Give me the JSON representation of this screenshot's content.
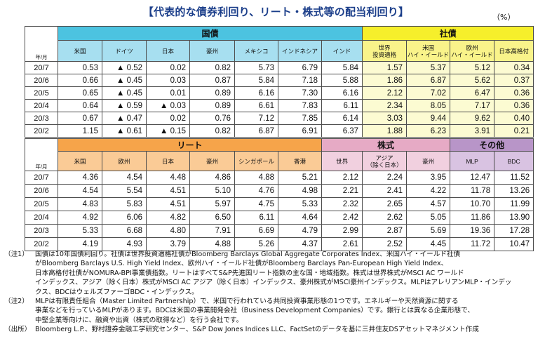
{
  "title": "【代表的な債券利回り、リート・株式等の配当利回り】",
  "unit": "（%）",
  "year_month_label": "年/月",
  "top_table": {
    "groups": {
      "bonds": "国債",
      "corp": "社債"
    },
    "headers": [
      "米国",
      "ドイツ",
      "日本",
      "豪州",
      "メキシコ",
      "インドネシア",
      "インド",
      "世界\n投資適格",
      "米国\nハイ・イールド",
      "欧州\nハイ・イールド",
      "日本高格付"
    ],
    "rows": [
      {
        "date": "20/7",
        "cells": [
          "0.53",
          "▲ 0.52",
          "0.02",
          "0.82",
          "5.73",
          "6.79",
          "5.84",
          "1.57",
          "5.37",
          "5.12",
          "0.34"
        ]
      },
      {
        "date": "20/6",
        "cells": [
          "0.66",
          "▲ 0.45",
          "0.03",
          "0.87",
          "5.84",
          "7.18",
          "5.88",
          "1.86",
          "6.87",
          "5.62",
          "0.37"
        ]
      },
      {
        "date": "20/5",
        "cells": [
          "0.65",
          "▲ 0.45",
          "0.01",
          "0.89",
          "6.16",
          "7.30",
          "6.16",
          "2.12",
          "7.02",
          "6.47",
          "0.36"
        ]
      },
      {
        "date": "20/4",
        "cells": [
          "0.64",
          "▲ 0.59",
          "▲ 0.03",
          "0.89",
          "6.61",
          "7.83",
          "6.11",
          "2.34",
          "8.05",
          "7.17",
          "0.36"
        ]
      },
      {
        "date": "20/3",
        "cells": [
          "0.67",
          "▲ 0.47",
          "0.02",
          "0.76",
          "7.12",
          "7.85",
          "6.14",
          "3.03",
          "9.44",
          "9.62",
          "0.40"
        ]
      },
      {
        "date": "20/2",
        "cells": [
          "1.15",
          "▲ 0.61",
          "▲ 0.15",
          "0.82",
          "6.87",
          "6.91",
          "6.37",
          "1.88",
          "6.23",
          "3.91",
          "0.21"
        ]
      }
    ]
  },
  "bottom_table": {
    "groups": {
      "reit": "リート",
      "equity": "株式",
      "other": "その他"
    },
    "headers": [
      "米国",
      "欧州",
      "日本",
      "豪州",
      "シンガポール",
      "香港",
      "世界",
      "アジア\n（除く日本）",
      "豪州",
      "MLP",
      "BDC"
    ],
    "rows": [
      {
        "date": "20/7",
        "cells": [
          "4.36",
          "4.54",
          "4.48",
          "4.86",
          "4.88",
          "5.21",
          "2.12",
          "2.24",
          "3.95",
          "12.47",
          "11.52"
        ]
      },
      {
        "date": "20/6",
        "cells": [
          "4.54",
          "5.54",
          "4.51",
          "5.10",
          "4.76",
          "4.98",
          "2.21",
          "2.41",
          "4.22",
          "11.78",
          "13.26"
        ]
      },
      {
        "date": "20/5",
        "cells": [
          "4.83",
          "5.83",
          "4.51",
          "5.97",
          "4.75",
          "5.33",
          "2.32",
          "2.65",
          "4.57",
          "10.70",
          "11.99"
        ]
      },
      {
        "date": "20/4",
        "cells": [
          "4.92",
          "6.06",
          "4.82",
          "6.50",
          "6.11",
          "4.64",
          "2.42",
          "2.62",
          "5.05",
          "11.86",
          "13.90"
        ]
      },
      {
        "date": "20/3",
        "cells": [
          "5.33",
          "6.68",
          "4.80",
          "7.91",
          "6.69",
          "4.79",
          "2.99",
          "2.87",
          "5.69",
          "19.36",
          "17.28"
        ]
      },
      {
        "date": "20/2",
        "cells": [
          "4.19",
          "4.93",
          "3.79",
          "4.88",
          "5.26",
          "4.37",
          "2.61",
          "2.52",
          "4.45",
          "11.72",
          "10.47"
        ]
      }
    ]
  },
  "notes": [
    {
      "label": "（注1）",
      "lines": [
        "国債は10年国債利回り。社債は世界投資適格社債がBloomberg Barclays Global Aggregate Corporates Index、米国ハイ・イールド社債",
        "がBloomberg Barclays U.S. High Yield Index、欧州ハイ・イールド社債がBloomberg Barclays Pan-European High Yield Index、",
        "日本高格付社債がNOMURA-BPI事業債指数。リートはすべてS&P先進国リート指数の主な国・地域指数。株式は世界株式がMSCI AC ワールド",
        "インデックス、アジア（除く日本）株式がMSCI AC アジア（除く日本）インデックス、豪州株式がMSCI豪州インデックス。MLPはアレリアンMLP・インデッ",
        "クス、BDCはウェルズファーゴBDC・インデックス。"
      ]
    },
    {
      "label": "（注2）",
      "lines": [
        "MLPは有限責任組合（Master Limited Partnership）で、米国で行われている共同投資事業形態の1つです。エネルギーや天然資源に関する",
        "事業などを行っているMLPがあります。BDCは米国の事業開発会社（Business Development Companies）です。銀行とは異なる企業形態で、",
        "中堅企業等向けに、融資や出資（株式の取得など）を行う会社です。"
      ]
    },
    {
      "label": "（出所）",
      "lines": [
        "Bloomberg L.P.、野村證券金融工学研究センター、S&P Dow Jones Indices LLC、FactSetのデータを基に三井住友DSアセットマネジメント作成"
      ]
    }
  ]
}
